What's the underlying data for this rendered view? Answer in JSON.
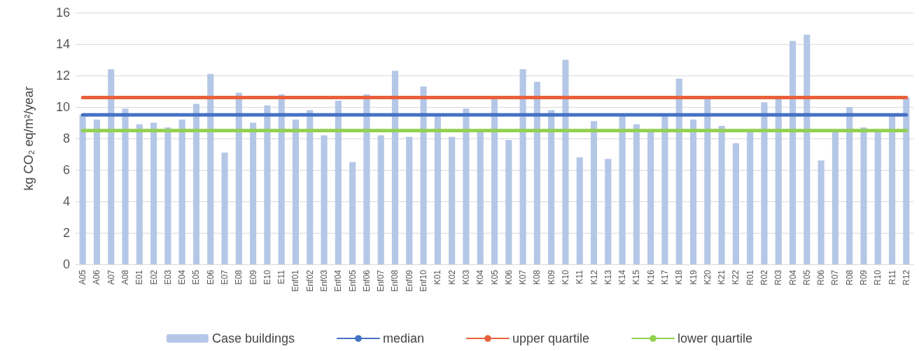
{
  "chart_data": {
    "type": "bar",
    "ylabel": "kg CO₂ eq/m²/year",
    "categories": [
      "A05",
      "A06",
      "A07",
      "A08",
      "E01",
      "E02",
      "E03",
      "E04",
      "E05",
      "E06",
      "E07",
      "E08",
      "E09",
      "E10",
      "E11",
      "Enf01",
      "Enf02",
      "Enf03",
      "Enf04",
      "Enf05",
      "Enf06",
      "Enf07",
      "Enf08",
      "Enf09",
      "Enf10",
      "K01",
      "K02",
      "K03",
      "K04",
      "K05",
      "K06",
      "K07",
      "K08",
      "K09",
      "K10",
      "K11",
      "K12",
      "K13",
      "K14",
      "K15",
      "K16",
      "K17",
      "K18",
      "K19",
      "K20",
      "K21",
      "K22",
      "R01",
      "R02",
      "R03",
      "R04",
      "R05",
      "R06",
      "R07",
      "R08",
      "R09",
      "R10",
      "R11",
      "R12"
    ],
    "series": [
      {
        "name": "Case buildings",
        "color": "#b4c7e7",
        "values": [
          9.5,
          9.2,
          12.4,
          9.9,
          8.9,
          9.0,
          8.7,
          9.2,
          10.2,
          12.1,
          7.1,
          10.9,
          9.0,
          10.1,
          10.8,
          9.2,
          9.8,
          8.2,
          10.4,
          6.5,
          10.8,
          8.2,
          12.3,
          8.1,
          11.3,
          9.4,
          8.1,
          9.9,
          8.4,
          10.6,
          7.9,
          12.4,
          11.6,
          9.8,
          13.0,
          6.8,
          9.1,
          6.7,
          9.5,
          8.9,
          8.4,
          9.5,
          11.8,
          9.2,
          10.6,
          8.8,
          7.7,
          8.4,
          10.3,
          10.5,
          14.2,
          14.6,
          6.6,
          8.4,
          10.0,
          8.7,
          8.4,
          9.6,
          10.6
        ]
      },
      {
        "name": "median",
        "type": "line",
        "color": "#4472c4",
        "values": [
          9.5,
          9.5,
          9.5,
          9.5,
          9.5,
          9.5,
          9.5,
          9.5,
          9.5,
          9.5,
          9.5,
          9.5,
          9.5,
          9.5,
          9.5,
          9.5,
          9.5,
          9.5,
          9.5,
          9.5,
          9.5,
          9.5,
          9.5,
          9.5,
          9.5,
          9.5,
          9.5,
          9.5,
          9.5,
          9.5,
          9.5,
          9.5,
          9.5,
          9.5,
          9.5,
          9.5,
          9.5,
          9.5,
          9.5,
          9.5,
          9.5,
          9.5,
          9.5,
          9.5,
          9.5,
          9.5,
          9.5,
          9.5,
          9.5,
          9.5,
          9.5,
          9.5,
          9.5,
          9.5,
          9.5,
          9.5,
          9.5,
          9.5,
          9.5
        ]
      },
      {
        "name": "upper quartile",
        "type": "line",
        "color": "#e8603c",
        "values": [
          10.6,
          10.6,
          10.6,
          10.6,
          10.6,
          10.6,
          10.6,
          10.6,
          10.6,
          10.6,
          10.6,
          10.6,
          10.6,
          10.6,
          10.6,
          10.6,
          10.6,
          10.6,
          10.6,
          10.6,
          10.6,
          10.6,
          10.6,
          10.6,
          10.6,
          10.6,
          10.6,
          10.6,
          10.6,
          10.6,
          10.6,
          10.6,
          10.6,
          10.6,
          10.6,
          10.6,
          10.6,
          10.6,
          10.6,
          10.6,
          10.6,
          10.6,
          10.6,
          10.6,
          10.6,
          10.6,
          10.6,
          10.6,
          10.6,
          10.6,
          10.6,
          10.6,
          10.6,
          10.6,
          10.6,
          10.6,
          10.6,
          10.6,
          10.6
        ]
      },
      {
        "name": "lower quartile",
        "type": "line",
        "color": "#92d050",
        "values": [
          8.5,
          8.5,
          8.5,
          8.5,
          8.5,
          8.5,
          8.5,
          8.5,
          8.5,
          8.5,
          8.5,
          8.5,
          8.5,
          8.5,
          8.5,
          8.5,
          8.5,
          8.5,
          8.5,
          8.5,
          8.5,
          8.5,
          8.5,
          8.5,
          8.5,
          8.5,
          8.5,
          8.5,
          8.5,
          8.5,
          8.5,
          8.5,
          8.5,
          8.5,
          8.5,
          8.5,
          8.5,
          8.5,
          8.5,
          8.5,
          8.5,
          8.5,
          8.5,
          8.5,
          8.5,
          8.5,
          8.5,
          8.5,
          8.5,
          8.5,
          8.5,
          8.5,
          8.5,
          8.5,
          8.5,
          8.5,
          8.5,
          8.5,
          8.5
        ]
      }
    ],
    "ylim": [
      0,
      16
    ],
    "yticks": [
      0,
      2,
      4,
      6,
      8,
      10,
      12,
      14,
      16
    ],
    "grid": "y",
    "legend": "bottom",
    "marker": "none",
    "line_style": "solid"
  }
}
